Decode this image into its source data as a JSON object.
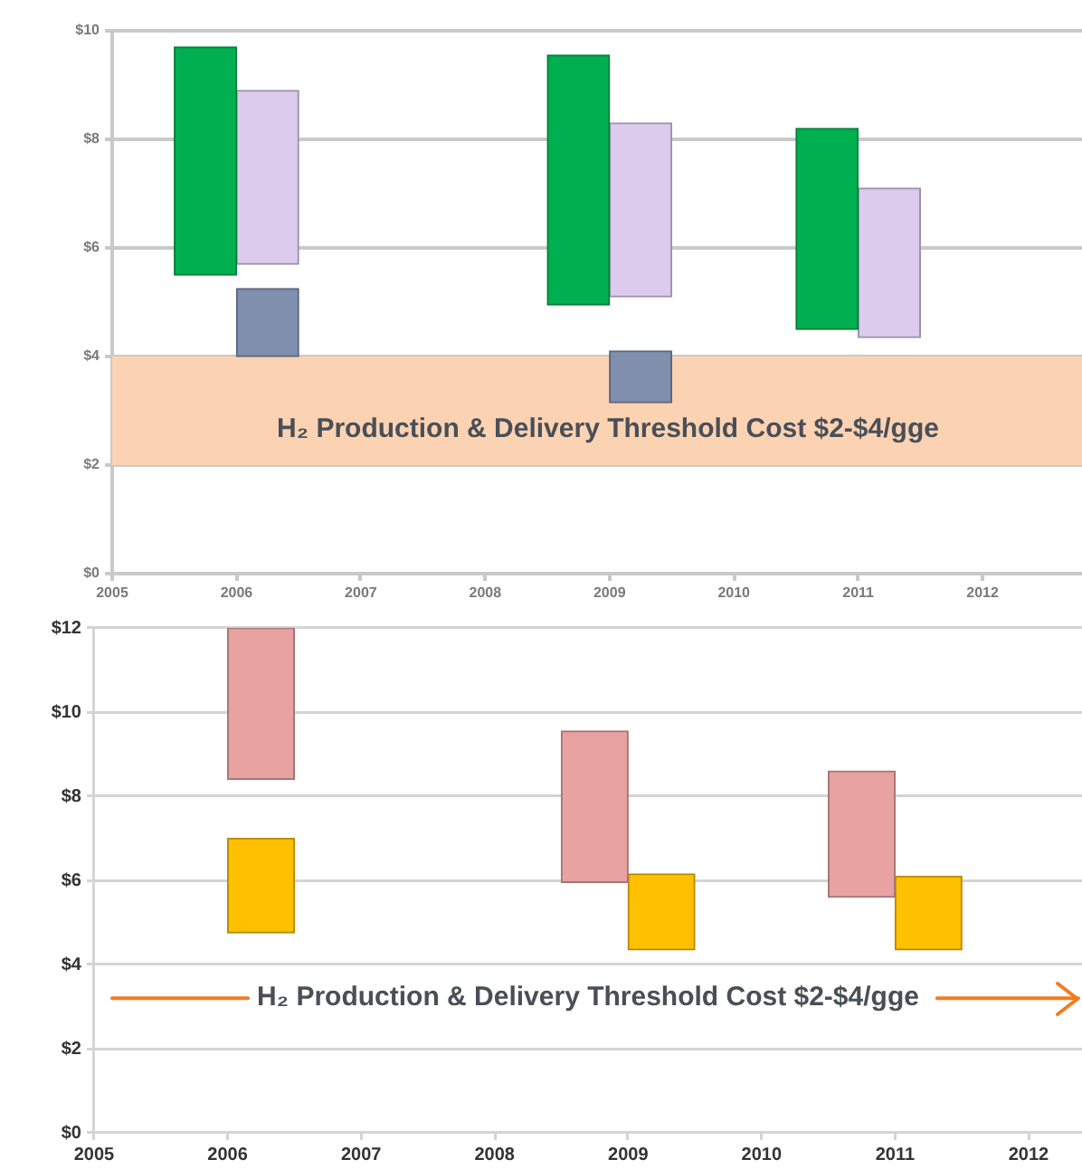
{
  "chart_data": [
    {
      "type": "bar",
      "xlim": [
        2005,
        2012.8
      ],
      "xticks": [
        2005,
        2006,
        2007,
        2008,
        2009,
        2010,
        2011,
        2012
      ],
      "ylim": [
        0,
        10
      ],
      "yticks": [
        {
          "value": 0,
          "label": "$0"
        },
        {
          "value": 2,
          "label": "$2"
        },
        {
          "value": 4,
          "label": "$4"
        },
        {
          "value": 6,
          "label": "$6"
        },
        {
          "value": 8,
          "label": "$8"
        },
        {
          "value": 10,
          "label": "$10"
        }
      ],
      "grid": "y",
      "series": [
        {
          "color": "#00b050",
          "x": [
            2005.75,
            2008.75,
            2010.75
          ],
          "base": [
            5.5,
            4.95,
            4.5
          ],
          "values": [
            4.2,
            4.6,
            3.7
          ]
        },
        {
          "color": "#dccbec",
          "x": [
            2006.25,
            2009.25,
            2011.25
          ],
          "base": [
            5.7,
            5.1,
            4.35
          ],
          "values": [
            3.2,
            3.2,
            2.75
          ]
        },
        {
          "color": "#7f8fad",
          "x": [
            2006.25,
            2009.25
          ],
          "base": [
            4.0,
            3.15
          ],
          "values": [
            1.25,
            0.95
          ]
        }
      ],
      "bands": [
        {
          "axis": "y",
          "from": 2,
          "to": 4,
          "label": "H₂ Production & Delivery Threshold Cost $2-$4/gge",
          "color": "#fbd3b3"
        }
      ]
    },
    {
      "type": "bar",
      "xlim": [
        2005,
        2012.4
      ],
      "xticks": [
        2005,
        2006,
        2007,
        2008,
        2009,
        2010,
        2011,
        2012
      ],
      "ylim": [
        0,
        12
      ],
      "yticks": [
        {
          "value": 0,
          "label": "$0"
        },
        {
          "value": 2,
          "label": "$2"
        },
        {
          "value": 4,
          "label": "$4"
        },
        {
          "value": 6,
          "label": "$6"
        },
        {
          "value": 8,
          "label": "$8"
        },
        {
          "value": 10,
          "label": "$10"
        },
        {
          "value": 12,
          "label": "$12"
        }
      ],
      "grid": "y",
      "series": [
        {
          "color": "#e8a2a2",
          "x": [
            2006.25,
            2008.75,
            2010.75
          ],
          "base": [
            8.4,
            5.95,
            5.6
          ],
          "values": [
            3.6,
            3.6,
            3.0
          ]
        },
        {
          "color": "#ffc000",
          "x": [
            2006.25,
            2009.25,
            2011.25
          ],
          "base": [
            4.75,
            4.35,
            4.35
          ],
          "values": [
            2.25,
            1.8,
            1.75
          ]
        }
      ],
      "ref_lines": [
        {
          "axis": "y",
          "value": 3.2,
          "label": "H₂ Production & Delivery Threshold Cost $2-$4/gge",
          "color": "#f47b20"
        }
      ]
    }
  ]
}
